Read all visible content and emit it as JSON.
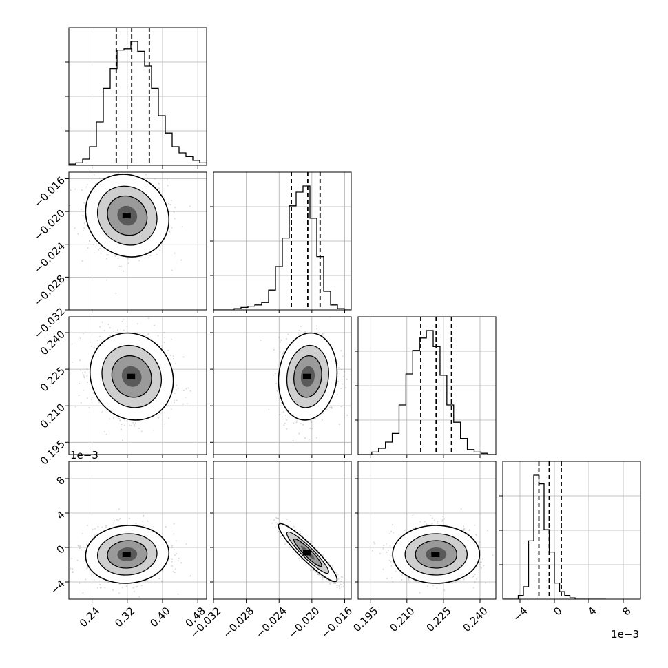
{
  "chart_data": {
    "type": "scatter",
    "subtype": "corner",
    "grid": true,
    "colors": {
      "line": "#000000",
      "scatter": "#8c8c8c",
      "grid": "#b0b0b0",
      "background": "#ffffff"
    },
    "parameters": [
      {
        "range": [
          0.1875,
          0.5
        ],
        "ticks": [
          0.24,
          0.32,
          0.4,
          0.48
        ],
        "tick_labels": [
          "0.24",
          "0.32",
          "0.40",
          "0.48"
        ],
        "quantiles": [
          0.295,
          0.33,
          0.37
        ],
        "histogram": {
          "edges_start": 0.1875,
          "bin_width": 0.015625,
          "counts": [
            1,
            2,
            5,
            15,
            35,
            62,
            78,
            93,
            94,
            100,
            92,
            80,
            62,
            40,
            26,
            15,
            10,
            7,
            4,
            2
          ]
        }
      },
      {
        "range": [
          -0.032,
          -0.0152
        ],
        "ticks": [
          -0.032,
          -0.028,
          -0.024,
          -0.02,
          -0.016
        ],
        "tick_labels": [
          "−0.032",
          "−0.028",
          "−0.024",
          "−0.020",
          "−0.016"
        ],
        "quantiles": [
          -0.0225,
          -0.0205,
          -0.019
        ],
        "histogram": {
          "edges_start": -0.032,
          "bin_width": 0.00084,
          "counts": [
            0,
            0,
            0,
            1,
            2,
            3,
            4,
            6,
            16,
            35,
            58,
            84,
            95,
            100,
            74,
            43,
            15,
            4,
            1,
            0
          ]
        }
      },
      {
        "range": [
          0.19,
          0.2465
        ],
        "ticks": [
          0.195,
          0.21,
          0.225,
          0.24
        ],
        "tick_labels": [
          "0.195",
          "0.210",
          "0.225",
          "0.240"
        ],
        "quantiles": [
          0.2157,
          0.222,
          0.2283
        ],
        "histogram": {
          "edges_start": 0.19,
          "bin_width": 0.0028,
          "counts": [
            0,
            0,
            2,
            5,
            10,
            17,
            40,
            65,
            84,
            94,
            100,
            87,
            64,
            40,
            26,
            13,
            4,
            2,
            1,
            0
          ]
        }
      },
      {
        "range": [
          -0.006,
          0.01
        ],
        "ticks": [
          -0.004,
          0.0,
          0.004,
          0.008
        ],
        "tick_labels": [
          "−4",
          "0",
          "4",
          "8"
        ],
        "offset_label": "1e−3",
        "quantiles": [
          -0.0018,
          -0.0006,
          0.0008
        ],
        "histogram": {
          "edges_start": -0.006,
          "bin_width": 0.0006,
          "counts": [
            0,
            0,
            0,
            3,
            10,
            47,
            100,
            93,
            56,
            38,
            13,
            6,
            3,
            1,
            0,
            0,
            0,
            0,
            0,
            0
          ]
        }
      }
    ],
    "pairs": [
      {
        "row": 1,
        "col": 0,
        "center": [
          0.32,
          -0.0205
        ],
        "sigma": [
          0.045,
          0.0024
        ],
        "corr": -0.1
      },
      {
        "row": 2,
        "col": 0,
        "center": [
          0.33,
          0.222
        ],
        "sigma": [
          0.045,
          0.0085
        ],
        "corr": -0.1
      },
      {
        "row": 2,
        "col": 1,
        "center": [
          -0.0205,
          0.222
        ],
        "sigma": [
          0.0017,
          0.0085
        ],
        "corr": 0.1
      },
      {
        "row": 3,
        "col": 0,
        "center": [
          0.32,
          -0.0008
        ],
        "sigma": [
          0.045,
          0.0016
        ],
        "corr": 0.05
      },
      {
        "row": 3,
        "col": 1,
        "center": [
          -0.0205,
          -0.0006
        ],
        "sigma": [
          0.0017,
          0.0016
        ],
        "corr": -0.93
      },
      {
        "row": 3,
        "col": 2,
        "center": [
          0.222,
          -0.0008
        ],
        "sigma": [
          0.0085,
          0.0016
        ],
        "corr": 0.0
      }
    ]
  }
}
